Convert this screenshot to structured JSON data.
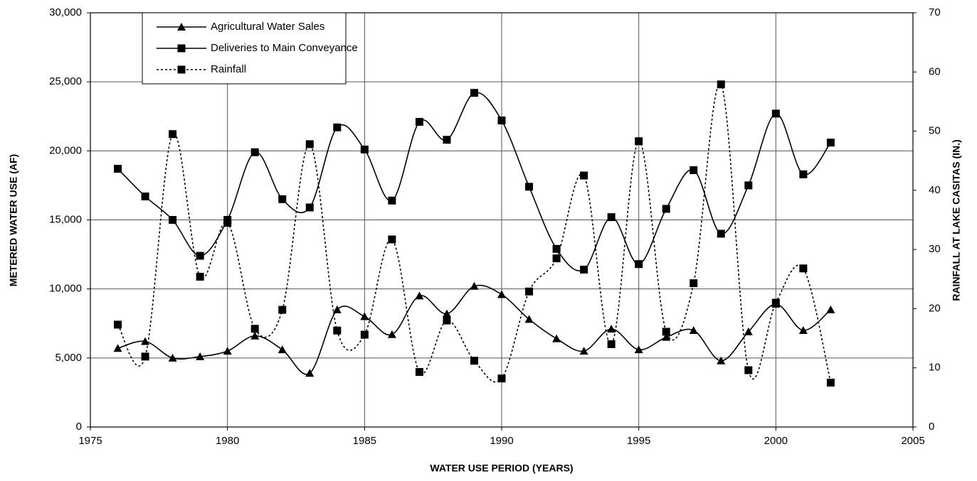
{
  "chart_data": {
    "type": "line",
    "x_label": "WATER USE PERIOD (YEARS)",
    "y_label": "METERED WATER USE (AF)",
    "y2_label": "RAINFALL AT LAKE CASITAS (IN.)",
    "x": [
      1976,
      1977,
      1978,
      1979,
      1980,
      1981,
      1982,
      1983,
      1984,
      1985,
      1986,
      1987,
      1988,
      1989,
      1990,
      1991,
      1992,
      1993,
      1994,
      1995,
      1996,
      1997,
      1998,
      1999,
      2000,
      2001,
      2002
    ],
    "series": [
      {
        "name": "Agricultural Water Sales",
        "color": "#000000",
        "line_style": "solid",
        "marker": "triangle",
        "values": [
          5700,
          6200,
          5000,
          5100,
          5500,
          6600,
          5600,
          3900,
          8500,
          8000,
          6700,
          9500,
          8200,
          10200,
          9600,
          7800,
          6400,
          5500,
          7100,
          5600,
          6500,
          7000,
          4800,
          6900,
          8900,
          7000,
          8500
        ]
      },
      {
        "name": "Deliveries to Main Conveyance",
        "color": "#000000",
        "line_style": "solid",
        "marker": "square",
        "values": [
          18700,
          16700,
          15000,
          12400,
          15000,
          19900,
          16500,
          15900,
          21700,
          20100,
          16400,
          22100,
          20800,
          24200,
          22200,
          17400,
          12900,
          11400,
          15200,
          11800,
          15800,
          18600,
          14000,
          17500,
          22700,
          18300,
          20600
        ]
      },
      {
        "name": "Rainfall",
        "color": "#000000",
        "line_style": "dashed",
        "marker": "square",
        "axis": "y2",
        "values": [
          17.3,
          11.9,
          49.5,
          25.4,
          34.5,
          16.6,
          19.8,
          47.8,
          16.3,
          15.6,
          31.7,
          9.3,
          18.0,
          11.2,
          8.2,
          22.9,
          28.5,
          42.5,
          14.0,
          48.3,
          16.1,
          24.3,
          57.9,
          9.6,
          21.0,
          26.8,
          7.5
        ]
      }
    ],
    "xlim": [
      1975,
      2005
    ],
    "xticks": [
      1975,
      1980,
      1985,
      1990,
      1995,
      2000,
      2005
    ],
    "ylim": [
      0,
      30000
    ],
    "yticks": [
      0,
      {
        "value": 5000,
        "label": "5,000"
      },
      {
        "value": 10000,
        "label": "10,000"
      },
      {
        "value": 15000,
        "label": "15,000"
      },
      {
        "value": 20000,
        "label": "20,000"
      },
      {
        "value": 25000,
        "label": "25,000"
      },
      {
        "value": 30000,
        "label": "30,000"
      }
    ],
    "y2lim": [
      0,
      70
    ],
    "y2ticks": [
      0,
      10,
      20,
      30,
      40,
      50,
      60,
      70
    ],
    "grid": true,
    "legend": "upper left"
  }
}
